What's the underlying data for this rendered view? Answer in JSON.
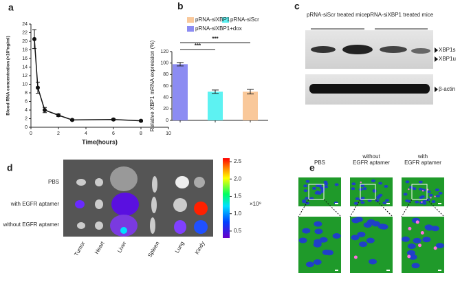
{
  "chart_data": [
    {
      "type": "line",
      "panel": "a",
      "xlabel": "Time(hours)",
      "ylabel": "Blood RNA concentration (×10³ng/ml)",
      "x": [
        0.25,
        0.5,
        1,
        2,
        3,
        6,
        8
      ],
      "series": [
        {
          "name": null,
          "color": "#111111",
          "values": [
            20.5,
            9.2,
            4,
            2.8,
            1.7,
            1.8,
            1.5
          ],
          "errors": [
            2.2,
            1.3,
            0.6,
            0.3,
            0.2,
            0.2,
            0.2
          ]
        }
      ],
      "xlim": [
        0,
        10
      ],
      "xticks": [
        0,
        2,
        4,
        6,
        8,
        10
      ],
      "ylim": [
        0,
        24
      ],
      "yticks": [
        0,
        2,
        4,
        6,
        8,
        10,
        12,
        14,
        16,
        18,
        20,
        22,
        24
      ]
    },
    {
      "type": "bar",
      "panel": "b",
      "ylabel": "Relative XBP1 mRNA expression (%)",
      "categories": [
        null,
        null,
        null
      ],
      "series": [
        {
          "name": "pRNA-siXBP1+dox",
          "color": "#8c8cf2",
          "values": [
            98,
            null,
            null
          ],
          "errors": [
            3,
            null,
            null
          ]
        },
        {
          "name": "pRNA-siScr",
          "color": "#5df2f2",
          "values": [
            null,
            50,
            null
          ],
          "errors": [
            null,
            3,
            null
          ]
        },
        {
          "name": "pRNA-siXBP1",
          "color": "#f9c89a",
          "values": [
            null,
            null,
            50
          ],
          "errors": [
            null,
            null,
            4
          ]
        }
      ],
      "significance": [
        "***",
        "***"
      ],
      "ylim": [
        0,
        120
      ],
      "yticks": [
        0,
        20,
        40,
        60,
        80,
        100,
        120
      ]
    }
  ],
  "panels": {
    "c": {
      "letter": "c",
      "groups": [
        "pRNA-siScr treated mice",
        "pRNA-siXBP1 treated mice"
      ],
      "bands": [
        "XBP1s",
        "XBP1u",
        "β-actin"
      ]
    },
    "d": {
      "letter": "d",
      "rows": [
        "PBS",
        "with EGFR aptamer",
        "without EGFR aptamer"
      ],
      "columns": [
        "Tumor",
        "Heart",
        "Liver",
        "Spleen",
        "Lung",
        "Kindy"
      ],
      "colorbar_ticks": [
        {
          "value": 0.5,
          "label": "0.5"
        },
        {
          "value": 1,
          "label": "1.0"
        },
        {
          "value": 1.5,
          "label": "1.5"
        },
        {
          "value": 2,
          "label": "2.0"
        },
        {
          "value": 2.5,
          "label": "2.5"
        }
      ],
      "colorbar_lim": [
        0.3,
        2.6
      ],
      "colorbar_unit": "×10⁹"
    },
    "e": {
      "letter": "e",
      "columns": [
        "PBS",
        "without EGFR aptamer",
        "with EGFR aptamer"
      ]
    }
  }
}
